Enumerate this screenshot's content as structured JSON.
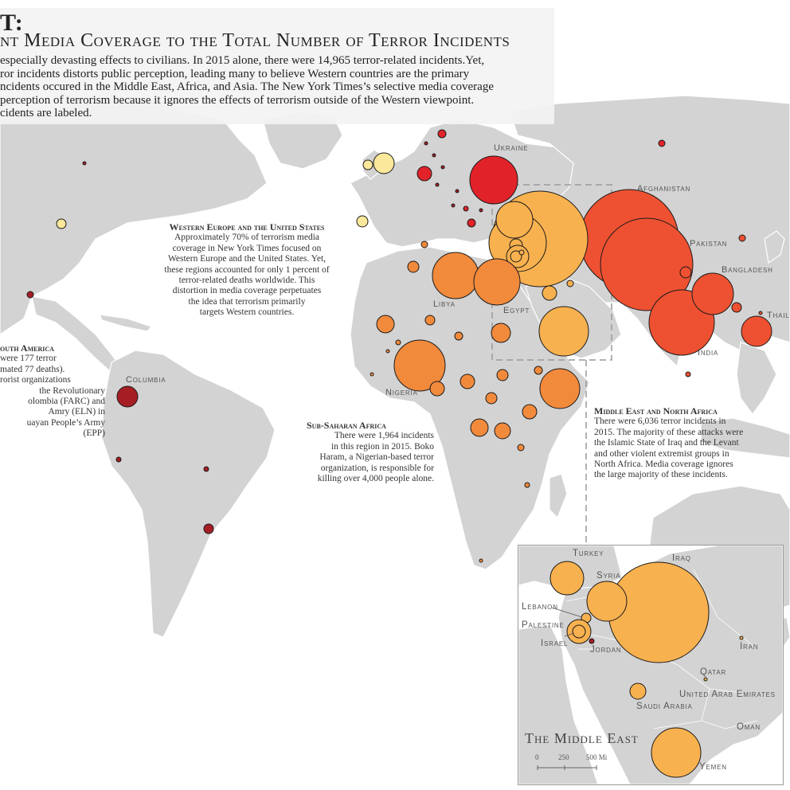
{
  "header": {
    "title": "T:",
    "subtitle": "nt Media Coverage  to the Total Number of Terror Incidents",
    "body_lines": [
      "especially devasting effects to civilians. In 2015 alone, there were 14,965 terror-related incidents.Yet,",
      "ror incidents distorts public perception, leading many to believe Western countries are the primary",
      "ncidents occured in the Middle East, Africa, and Asia. The New York Times’s selective media coverage",
      "perception of terrorism because it ignores the effects of terrorism outside of the Western viewpoint.",
      "cidents are labeled."
    ]
  },
  "annotations": {
    "western_europe": {
      "title": "Western Europe and the United States",
      "lines": [
        "Approximately 70% of terrorism media",
        "coverage in New York Times focused on",
        "Western Europe and the United States. Yet,",
        "these regions accounted for only 1 percent of",
        "terror-related deaths worldwide. This",
        "distortion in media coverage perpetuates",
        "the idea that terrorism primarily",
        "targets Western countries."
      ]
    },
    "south_america": {
      "title": "outh America",
      "lines": [
        "were 177 terror",
        "mated 77 deaths).",
        "rorist organizations",
        "the Revolutionary",
        "olombia (FARC) and",
        "Amry (ELN) in",
        "uayan People’s Army",
        "(EPP)"
      ]
    },
    "sub_saharan": {
      "title": "Sub-Saharan Africa",
      "lines": [
        "There were 1,964 incidents",
        "in this region in 2015. Boko",
        "Haram, a Nigerian-based terror",
        "organization, is responsible for",
        "killing over 4,000 people alone."
      ]
    },
    "mena": {
      "title": "Middle East and North Africa",
      "lines": [
        "There were 6,036 terror incidents in",
        "2015. The majority of these attacks were",
        "the Islamic State of Iraq and the Levant",
        "and other violent extremist groups in",
        "North Africa. Media coverage ignores",
        "the large majority of these incidents."
      ]
    }
  },
  "country_labels": {
    "ukraine": "Ukraine",
    "afghanistan": "Afghanistan",
    "pakistan": "Pakistan",
    "bangladesh": "Bangladesh",
    "thailand": "Thail",
    "india": "India",
    "libya": "Libya",
    "egypt": "Egypt",
    "nigeria": "Nigeria",
    "columbia": "Columbia"
  },
  "inset": {
    "title": "The Middle East",
    "labels": {
      "turkey": "Turkey",
      "iraq": "Iraq",
      "syria": "Syria",
      "lebanon": "Lebanon",
      "palestine": "Palestine",
      "israel": "Israel",
      "jordan": "Jordan",
      "iran": "Iran",
      "qatar": "Qatar",
      "uae": "United Arab Emirates",
      "saudi": "Saudi Arabia",
      "oman": "Oman",
      "yemen": "Yemen"
    },
    "scale": {
      "t0": "0",
      "t1": "250",
      "t2": "500 Mi"
    }
  },
  "colors": {
    "land": "#d3d3d3",
    "ocean": "#ffffff",
    "level_very_high": "#ee5131",
    "level_high": "#f28a3c",
    "level_mid": "#f8b14f",
    "level_low": "#fbe89a",
    "level_media": "#e12329",
    "level_dark": "#a61d24"
  }
}
